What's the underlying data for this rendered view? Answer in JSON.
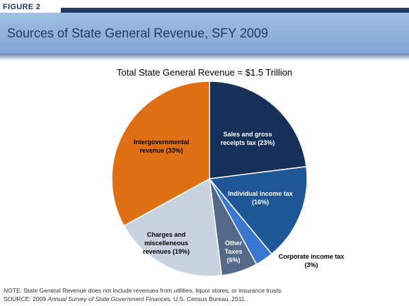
{
  "figure_label": "FIGURE 2",
  "header_title": "Sources of State General Revenue, SFY 2009",
  "chart_data": {
    "type": "pie",
    "title": "Total State General Revenue = $1.5 Trillion",
    "slices": [
      {
        "label_lines": [
          "Sales and gross",
          "receipts tax (23%)"
        ],
        "value": 23,
        "color": "#16305a",
        "text_color": "#ffffff"
      },
      {
        "label_lines": [
          "Individual income tax",
          "(16%)"
        ],
        "value": 16,
        "color": "#1f5696",
        "text_color": "#ffffff"
      },
      {
        "label_lines": [
          "Corporate income tax",
          "(3%)"
        ],
        "value": 3,
        "color": "#3a78cf",
        "text_color": "#000000"
      },
      {
        "label_lines": [
          "Other",
          "Taxes",
          "(6%)"
        ],
        "value": 6,
        "color": "#52698a",
        "text_color": "#ffffff"
      },
      {
        "label_lines": [
          "Charges and",
          "miscelleneous",
          "revenues (19%)"
        ],
        "value": 19,
        "color": "#c9d2df",
        "text_color": "#000000"
      },
      {
        "label_lines": [
          "Intergovernmental",
          "revenue (33%)"
        ],
        "value": 33,
        "color": "#de6f14",
        "text_color": "#000000"
      }
    ]
  },
  "note": "NOTE: State General Revenue does not include revenues from utilities, liquor stores, or insurance trusts.",
  "source": {
    "prefix": "SOURCE: 2009 ",
    "title": "Annual Survey of State Government Finances.",
    "suffix": "  U.S. Census Bureau, 2011."
  }
}
